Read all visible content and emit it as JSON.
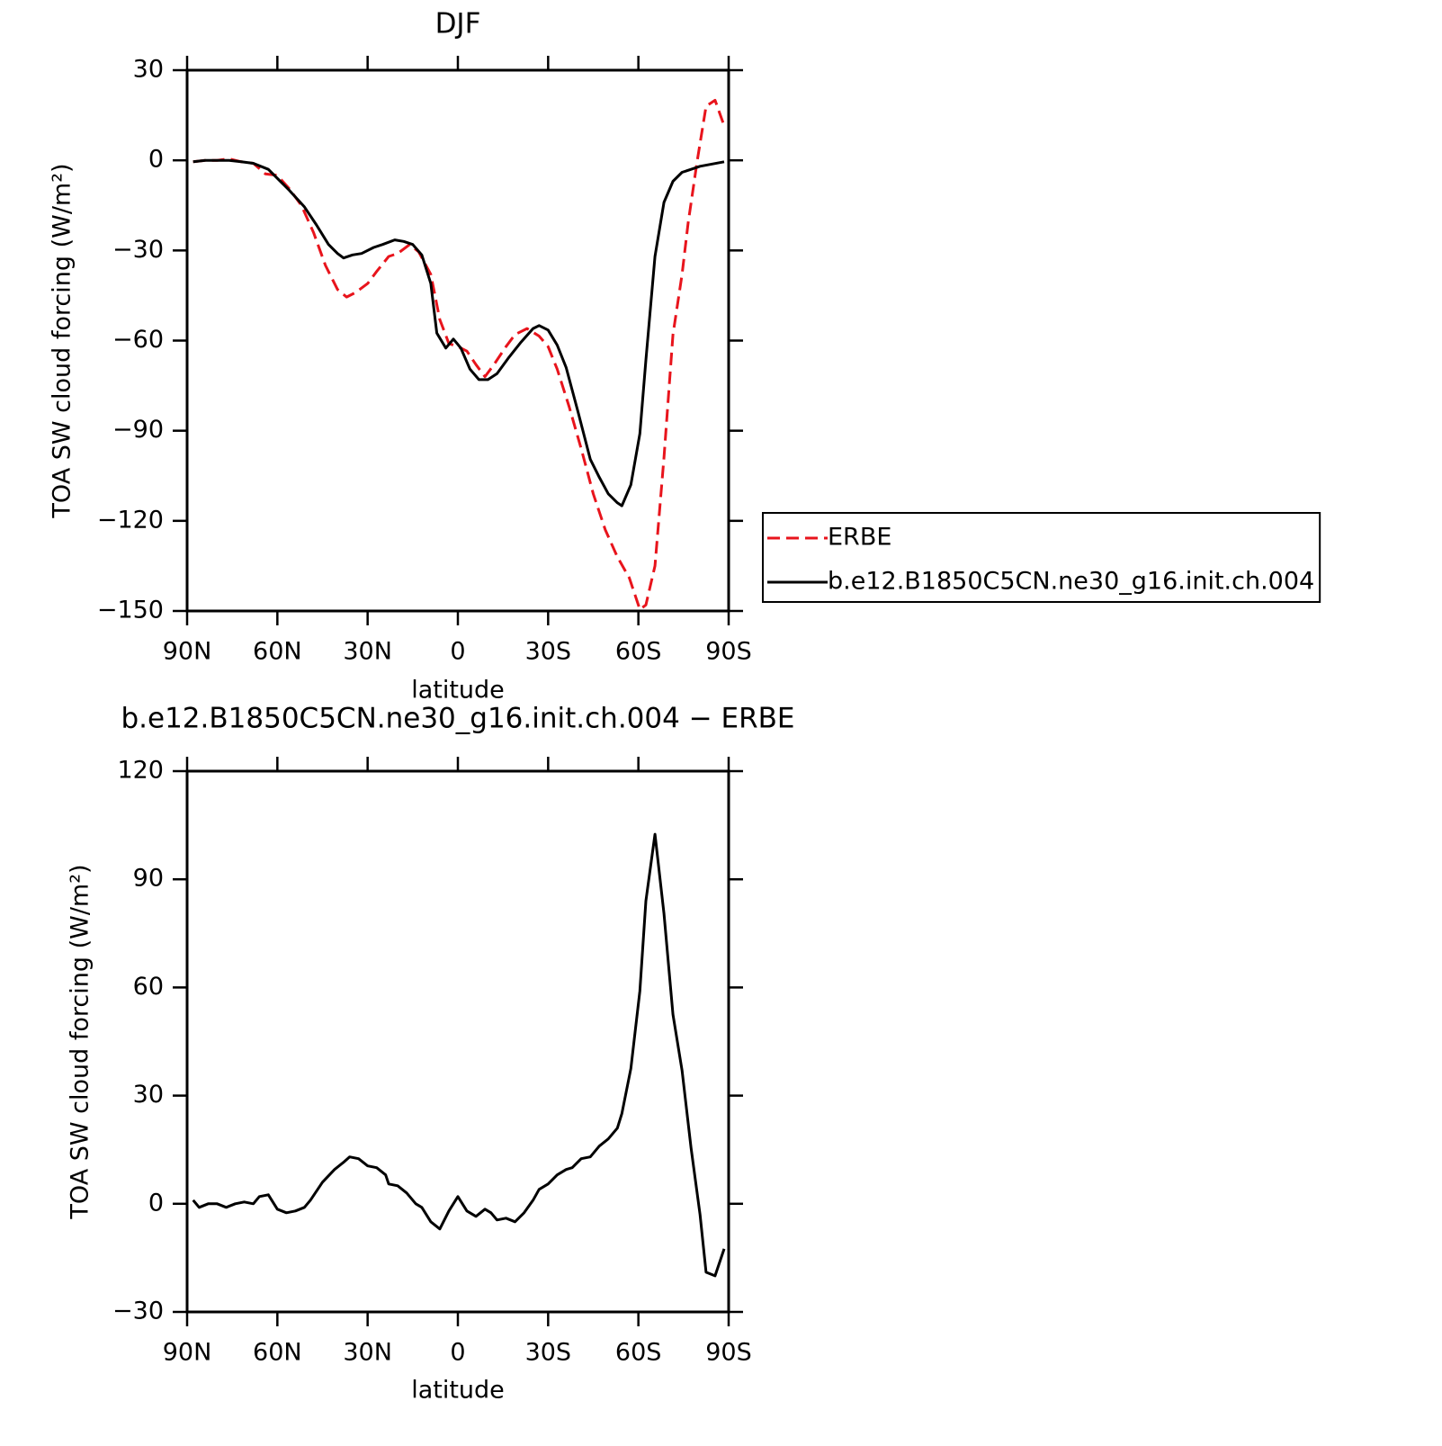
{
  "chart_data": [
    {
      "type": "line",
      "title": "DJF",
      "x_label": "latitude",
      "y_label": "TOA SW cloud forcing (W/m²)",
      "xlim": [
        90,
        -90
      ],
      "xticks": [
        {
          "value": 90,
          "label": "90N"
        },
        {
          "value": 60,
          "label": "60N"
        },
        {
          "value": 30,
          "label": "30N"
        },
        0,
        {
          "value": -30,
          "label": "30S"
        },
        {
          "value": -60,
          "label": "60S"
        },
        {
          "value": -90,
          "label": "90S"
        }
      ],
      "ylim": [
        -150,
        30
      ],
      "yticks": [
        30,
        0,
        {
          "value": -30,
          "label": "−30"
        },
        {
          "value": -60,
          "label": "−60"
        },
        {
          "value": -90,
          "label": "−90"
        },
        {
          "value": -120,
          "label": "−120"
        },
        {
          "value": -150,
          "label": "−150"
        }
      ],
      "legend": "right",
      "series": [
        {
          "name": "ERBE",
          "color": "#e8141c",
          "dash": "dashed",
          "x": [
            88,
            84,
            80,
            76,
            72,
            68,
            64,
            60,
            56,
            52,
            48,
            44,
            40,
            37,
            34,
            30,
            27,
            23,
            20,
            16,
            13,
            9,
            6,
            3,
            0,
            -3,
            -6,
            -9,
            -12,
            -16,
            -19,
            -23,
            -27,
            -30,
            -33,
            -37,
            -41,
            -45,
            -49,
            -53,
            -57,
            -59,
            -60.5,
            -62.5,
            -65.5,
            -68.5,
            -71.5,
            -74.5,
            -76.5,
            -79.5,
            -82.5,
            -85.5,
            -88.5
          ],
          "values": [
            -0.5,
            0,
            0,
            0.5,
            -0.5,
            -1,
            -4.5,
            -5,
            -9.5,
            -15,
            -24,
            -35,
            -43,
            -45.5,
            -44,
            -41,
            -37,
            -32,
            -31,
            -28,
            -30.5,
            -38,
            -53,
            -61,
            -62,
            -63.5,
            -68,
            -72,
            -68,
            -62,
            -58,
            -56,
            -58.5,
            -62,
            -69.5,
            -82,
            -96,
            -111,
            -123,
            -132,
            -139,
            -145,
            -149.5,
            -148,
            -135,
            -99,
            -58,
            -38,
            -21,
            -0.5,
            18,
            20,
            11.5
          ]
        },
        {
          "name": "b.e12.B1850C5CN.ne30_g16.init.ch.004",
          "color": "#000000",
          "dash": "solid",
          "x": [
            88,
            84,
            80,
            76,
            72,
            68,
            63,
            60,
            56,
            51,
            47,
            43,
            40,
            38,
            35,
            32,
            28,
            25,
            21,
            18,
            15,
            12,
            9,
            7,
            4,
            1.5,
            -1,
            -4,
            -7,
            -10,
            -13,
            -17,
            -21,
            -25,
            -27,
            -30,
            -33,
            -36,
            -40,
            -44,
            -47,
            -50,
            -53,
            -54.5,
            -57.5,
            -60.5,
            -62.5,
            -65.5,
            -68.5,
            -71.5,
            -74.5,
            -77.5,
            -80.5,
            -88.5
          ],
          "values": [
            -0.5,
            0,
            0,
            0,
            -0.5,
            -1,
            -3,
            -6,
            -10,
            -15.5,
            -21.5,
            -28,
            -31,
            -32.5,
            -31.5,
            -31,
            -29,
            -28,
            -26.5,
            -27,
            -28,
            -31.5,
            -41,
            -57.5,
            -62.5,
            -59.5,
            -62.5,
            -69.5,
            -73,
            -73,
            -71,
            -65.5,
            -60.5,
            -56,
            -55,
            -56.5,
            -61.5,
            -69,
            -84,
            -99.5,
            -105.5,
            -111,
            -114,
            -115,
            -108,
            -91,
            -66.5,
            -32,
            -14,
            -7,
            -4,
            -3,
            -2,
            -0.5
          ]
        }
      ]
    },
    {
      "type": "line",
      "title": "b.e12.B1850C5CN.ne30_g16.init.ch.004 − ERBE",
      "x_label": "latitude",
      "y_label": "TOA SW cloud forcing (W/m²)",
      "xlim": [
        90,
        -90
      ],
      "xticks": [
        {
          "value": 90,
          "label": "90N"
        },
        {
          "value": 60,
          "label": "60N"
        },
        {
          "value": 30,
          "label": "30N"
        },
        0,
        {
          "value": -30,
          "label": "30S"
        },
        {
          "value": -60,
          "label": "60S"
        },
        {
          "value": -90,
          "label": "90S"
        }
      ],
      "ylim": [
        -30,
        120
      ],
      "yticks": [
        120,
        90,
        60,
        30,
        0,
        {
          "value": -30,
          "label": "−30"
        }
      ],
      "series": [
        {
          "color": "#000000",
          "dash": "solid",
          "x": [
            88,
            86,
            83,
            80,
            77,
            74,
            71,
            68,
            66,
            63,
            60,
            57,
            54,
            51,
            49,
            45,
            41,
            38,
            36,
            33,
            30,
            27,
            24,
            23,
            20,
            17,
            14,
            12,
            9,
            6,
            3,
            0,
            -3,
            -6,
            -9,
            -11,
            -13,
            -16,
            -19,
            -22,
            -25,
            -27,
            -30,
            -33,
            -36,
            -38,
            -41,
            -44,
            -47,
            -50,
            -53,
            -54.5,
            -57.5,
            -60.5,
            -62.5,
            -65.5,
            -68.5,
            -71.5,
            -74.5,
            -77.5,
            -80.5,
            -82.5,
            -85.5,
            -88.5
          ],
          "values": [
            1,
            -1,
            0,
            0,
            -1,
            0,
            0.5,
            0,
            2,
            2.5,
            -1.5,
            -2.5,
            -2,
            -1,
            1,
            6,
            9.5,
            11.5,
            13,
            12.5,
            10.5,
            10,
            8,
            5.5,
            5,
            3,
            0,
            -1,
            -5,
            -7,
            -2,
            2,
            -2,
            -3.5,
            -1.5,
            -2.5,
            -4.5,
            -4,
            -5,
            -2.5,
            1,
            4,
            5.5,
            8,
            9.5,
            10,
            12.5,
            13,
            16,
            18,
            21,
            25,
            37.5,
            59,
            84,
            102.5,
            80.5,
            52.5,
            37,
            15.5,
            -3,
            -19,
            -20,
            -12.5
          ]
        }
      ]
    }
  ]
}
